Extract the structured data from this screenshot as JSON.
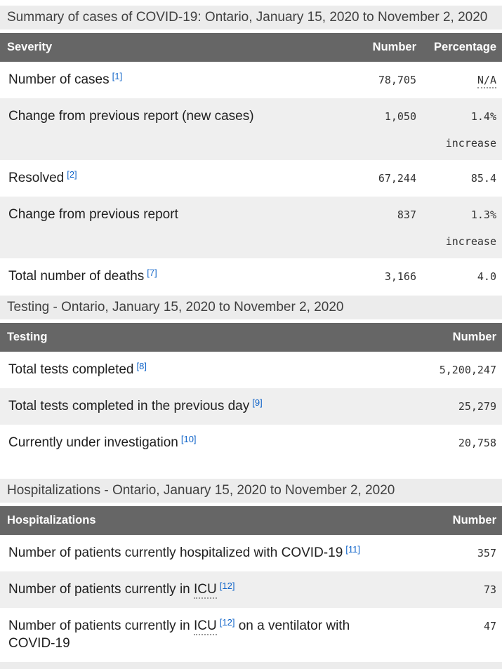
{
  "summary": {
    "caption": "Summary of cases of COVID-19: Ontario, January 15, 2020 to November 2, 2020",
    "headers": {
      "severity": "Severity",
      "number": "Number",
      "percentage": "Percentage"
    },
    "rows": [
      {
        "label": "Number of cases",
        "footnote": "[1]",
        "number": "78,705",
        "percent_abbr": "N/A"
      },
      {
        "label": "Change from previous report (new cases)",
        "number": "1,050",
        "percent": "1.4%",
        "percent_note": "increase"
      },
      {
        "label": "Resolved",
        "footnote": "[2]",
        "number": "67,244",
        "percent": "85.4"
      },
      {
        "label": "Change from previous report",
        "number": "837",
        "percent": "1.3%",
        "percent_note": "increase"
      },
      {
        "label": "Total number of deaths",
        "footnote": "[7]",
        "number": "3,166",
        "percent": "4.0"
      }
    ]
  },
  "testing": {
    "caption": "Testing - Ontario, January 15, 2020 to November 2, 2020",
    "headers": {
      "testing": "Testing",
      "number": "Number"
    },
    "rows": [
      {
        "label": "Total tests completed",
        "footnote": "[8]",
        "number": "5,200,247"
      },
      {
        "label": "Total tests completed in the previous day",
        "footnote": "[9]",
        "number": "25,279"
      },
      {
        "label": "Currently under investigation",
        "footnote": "[10]",
        "number": "20,758"
      }
    ]
  },
  "hospitalizations": {
    "caption": "Hospitalizations - Ontario, January 15, 2020 to November 2, 2020",
    "headers": {
      "hospitalizations": "Hospitalizations",
      "number": "Number"
    },
    "rows": [
      {
        "label": "Number of patients currently hospitalized with COVID-19",
        "footnote": "[11]",
        "number": "357"
      },
      {
        "label_pre": "Number of patients currently in",
        "abbr": "ICU",
        "footnote": "[12]",
        "number": "73"
      },
      {
        "label_pre": "Number of patients currently in",
        "abbr": "ICU",
        "footnote": "[12]",
        "label_post": "on a ventilator with COVID-19",
        "number": "47"
      }
    ]
  },
  "colors": {
    "caption_bg": "#ececec",
    "header_bg": "#666666",
    "stripe_bg": "#efefef",
    "link_blue": "#1064c9",
    "body_text": "#1f1f1f"
  }
}
